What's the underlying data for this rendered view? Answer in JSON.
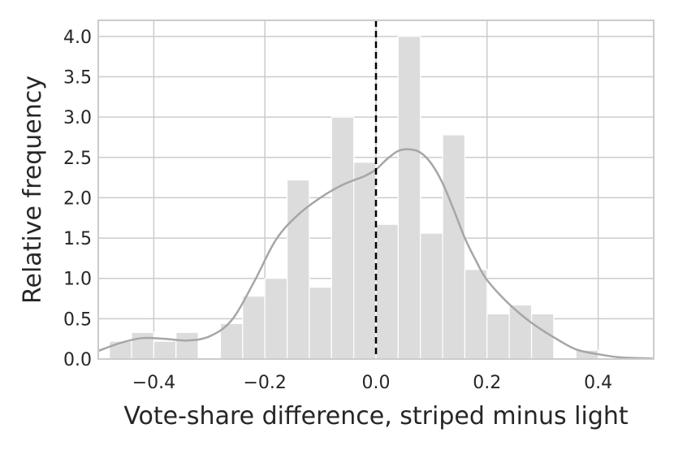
{
  "chart_data": {
    "type": "bar",
    "subtype": "histogram-with-kde",
    "xlabel": "Vote-share difference, striped minus light",
    "ylabel": "Relative frequency",
    "xlim": [
      -0.5,
      0.5
    ],
    "ylim": [
      0,
      4.2
    ],
    "xticks": [
      -0.4,
      -0.2,
      0.0,
      0.2,
      0.4
    ],
    "xtick_labels": [
      "−0.4",
      "−0.2",
      "0.0",
      "0.2",
      "0.4"
    ],
    "yticks": [
      0,
      0.5,
      1.0,
      1.5,
      2.0,
      2.5,
      3.0,
      3.5,
      4.0
    ],
    "ytick_labels": [
      "0.0",
      "0.5",
      "1.0",
      "1.5",
      "2.0",
      "2.5",
      "3.0",
      "3.5",
      "4.0"
    ],
    "grid": true,
    "reference_line": {
      "x": 0.0,
      "style": "dashed",
      "color": "#000000"
    },
    "bin_width": 0.04,
    "bins": [
      {
        "x0": -0.48,
        "x1": -0.44,
        "value": 0.22
      },
      {
        "x0": -0.44,
        "x1": -0.4,
        "value": 0.33
      },
      {
        "x0": -0.4,
        "x1": -0.36,
        "value": 0.22
      },
      {
        "x0": -0.36,
        "x1": -0.32,
        "value": 0.33
      },
      {
        "x0": -0.32,
        "x1": -0.28,
        "value": 0.0
      },
      {
        "x0": -0.28,
        "x1": -0.24,
        "value": 0.44
      },
      {
        "x0": -0.24,
        "x1": -0.2,
        "value": 0.78
      },
      {
        "x0": -0.2,
        "x1": -0.16,
        "value": 1.0
      },
      {
        "x0": -0.16,
        "x1": -0.12,
        "value": 2.22
      },
      {
        "x0": -0.12,
        "x1": -0.08,
        "value": 0.89
      },
      {
        "x0": -0.08,
        "x1": -0.04,
        "value": 3.0
      },
      {
        "x0": -0.04,
        "x1": 0.0,
        "value": 2.44
      },
      {
        "x0": 0.0,
        "x1": 0.04,
        "value": 1.67
      },
      {
        "x0": 0.04,
        "x1": 0.08,
        "value": 4.0
      },
      {
        "x0": 0.08,
        "x1": 0.12,
        "value": 1.56
      },
      {
        "x0": 0.12,
        "x1": 0.16,
        "value": 2.78
      },
      {
        "x0": 0.16,
        "x1": 0.2,
        "value": 1.11
      },
      {
        "x0": 0.2,
        "x1": 0.24,
        "value": 0.56
      },
      {
        "x0": 0.24,
        "x1": 0.28,
        "value": 0.67
      },
      {
        "x0": 0.28,
        "x1": 0.32,
        "value": 0.56
      },
      {
        "x0": 0.32,
        "x1": 0.36,
        "value": 0.0
      },
      {
        "x0": 0.36,
        "x1": 0.4,
        "value": 0.11
      }
    ],
    "kde": {
      "x": [
        -0.5,
        -0.46,
        -0.42,
        -0.38,
        -0.34,
        -0.3,
        -0.26,
        -0.22,
        -0.18,
        -0.14,
        -0.1,
        -0.06,
        -0.02,
        0.0,
        0.02,
        0.04,
        0.06,
        0.08,
        0.1,
        0.12,
        0.14,
        0.16,
        0.18,
        0.2,
        0.24,
        0.28,
        0.32,
        0.36,
        0.4,
        0.44,
        0.48,
        0.5
      ],
      "y": [
        0.1,
        0.2,
        0.26,
        0.25,
        0.23,
        0.28,
        0.48,
        0.95,
        1.48,
        1.79,
        2.0,
        2.16,
        2.27,
        2.35,
        2.48,
        2.58,
        2.6,
        2.56,
        2.42,
        2.18,
        1.85,
        1.5,
        1.22,
        0.98,
        0.68,
        0.45,
        0.27,
        0.12,
        0.06,
        0.02,
        0.01,
        0.005
      ]
    },
    "colors": {
      "bar": "#dcdcdc",
      "kde": "#a6a6a6",
      "grid": "#cccccc",
      "text": "#262626"
    }
  }
}
